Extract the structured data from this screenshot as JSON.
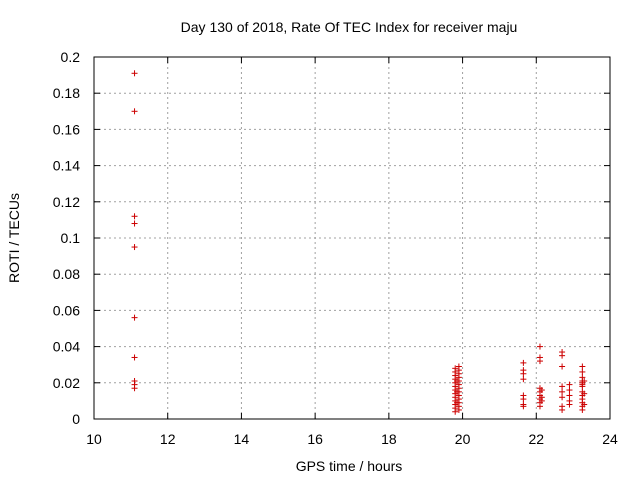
{
  "chart_data": {
    "type": "scatter",
    "title": "Day 130 of 2018, Rate Of TEC Index for receiver maju",
    "xlabel": "GPS time / hours",
    "ylabel": "ROTI / TECUs",
    "xlim": [
      10,
      24
    ],
    "ylim": [
      0,
      0.2
    ],
    "xticks": [
      10,
      12,
      14,
      16,
      18,
      20,
      22,
      24
    ],
    "xtick_labels": [
      "10",
      "12",
      "14",
      "16",
      "18",
      "20",
      "22",
      "24"
    ],
    "yticks": [
      0,
      0.02,
      0.04,
      0.06,
      0.08,
      0.1,
      0.12,
      0.14,
      0.16,
      0.18,
      0.2
    ],
    "ytick_labels": [
      "0",
      "0.02",
      "0.04",
      "0.06",
      "0.08",
      "0.1",
      "0.12",
      "0.14",
      "0.16",
      "0.18",
      "0.2"
    ],
    "grid": true,
    "marker": "+",
    "color": "#cc0000",
    "series": [
      {
        "name": "ROTI",
        "points": [
          [
            11.1,
            0.191
          ],
          [
            11.1,
            0.17
          ],
          [
            11.1,
            0.112
          ],
          [
            11.1,
            0.108
          ],
          [
            11.1,
            0.095
          ],
          [
            11.1,
            0.056
          ],
          [
            11.1,
            0.034
          ],
          [
            11.1,
            0.021
          ],
          [
            11.1,
            0.019
          ],
          [
            11.1,
            0.017
          ],
          [
            19.8,
            0.028
          ],
          [
            19.8,
            0.026
          ],
          [
            19.8,
            0.024
          ],
          [
            19.8,
            0.022
          ],
          [
            19.8,
            0.02
          ],
          [
            19.8,
            0.018
          ],
          [
            19.8,
            0.016
          ],
          [
            19.8,
            0.014
          ],
          [
            19.8,
            0.012
          ],
          [
            19.8,
            0.01
          ],
          [
            19.8,
            0.008
          ],
          [
            19.8,
            0.006
          ],
          [
            19.8,
            0.004
          ],
          [
            19.9,
            0.029
          ],
          [
            19.9,
            0.027
          ],
          [
            19.9,
            0.025
          ],
          [
            19.9,
            0.023
          ],
          [
            19.9,
            0.021
          ],
          [
            19.9,
            0.019
          ],
          [
            19.9,
            0.017
          ],
          [
            19.9,
            0.015
          ],
          [
            19.9,
            0.013
          ],
          [
            19.9,
            0.011
          ],
          [
            19.9,
            0.009
          ],
          [
            19.9,
            0.007
          ],
          [
            19.9,
            0.005
          ],
          [
            19.85,
            0.021
          ],
          [
            19.85,
            0.015
          ],
          [
            19.85,
            0.009
          ],
          [
            21.65,
            0.031
          ],
          [
            21.65,
            0.027
          ],
          [
            21.65,
            0.025
          ],
          [
            21.65,
            0.022
          ],
          [
            21.65,
            0.013
          ],
          [
            21.65,
            0.011
          ],
          [
            21.65,
            0.008
          ],
          [
            21.65,
            0.007
          ],
          [
            22.1,
            0.04
          ],
          [
            22.1,
            0.034
          ],
          [
            22.1,
            0.032
          ],
          [
            22.1,
            0.017
          ],
          [
            22.1,
            0.015
          ],
          [
            22.1,
            0.013
          ],
          [
            22.1,
            0.011
          ],
          [
            22.1,
            0.009
          ],
          [
            22.1,
            0.007
          ],
          [
            22.15,
            0.016
          ],
          [
            22.15,
            0.012
          ],
          [
            22.15,
            0.01
          ],
          [
            22.7,
            0.037
          ],
          [
            22.7,
            0.035
          ],
          [
            22.7,
            0.029
          ],
          [
            22.7,
            0.018
          ],
          [
            22.7,
            0.015
          ],
          [
            22.7,
            0.012
          ],
          [
            22.7,
            0.007
          ],
          [
            22.7,
            0.005
          ],
          [
            22.9,
            0.019
          ],
          [
            22.9,
            0.016
          ],
          [
            22.9,
            0.013
          ],
          [
            22.9,
            0.01
          ],
          [
            22.9,
            0.008
          ],
          [
            23.25,
            0.029
          ],
          [
            23.25,
            0.026
          ],
          [
            23.25,
            0.023
          ],
          [
            23.25,
            0.021
          ],
          [
            23.25,
            0.02
          ],
          [
            23.25,
            0.019
          ],
          [
            23.25,
            0.018
          ],
          [
            23.25,
            0.015
          ],
          [
            23.25,
            0.013
          ],
          [
            23.25,
            0.011
          ],
          [
            23.25,
            0.009
          ],
          [
            23.25,
            0.007
          ],
          [
            23.25,
            0.005
          ],
          [
            23.3,
            0.021
          ],
          [
            23.3,
            0.014
          ],
          [
            23.3,
            0.008
          ]
        ]
      }
    ]
  }
}
